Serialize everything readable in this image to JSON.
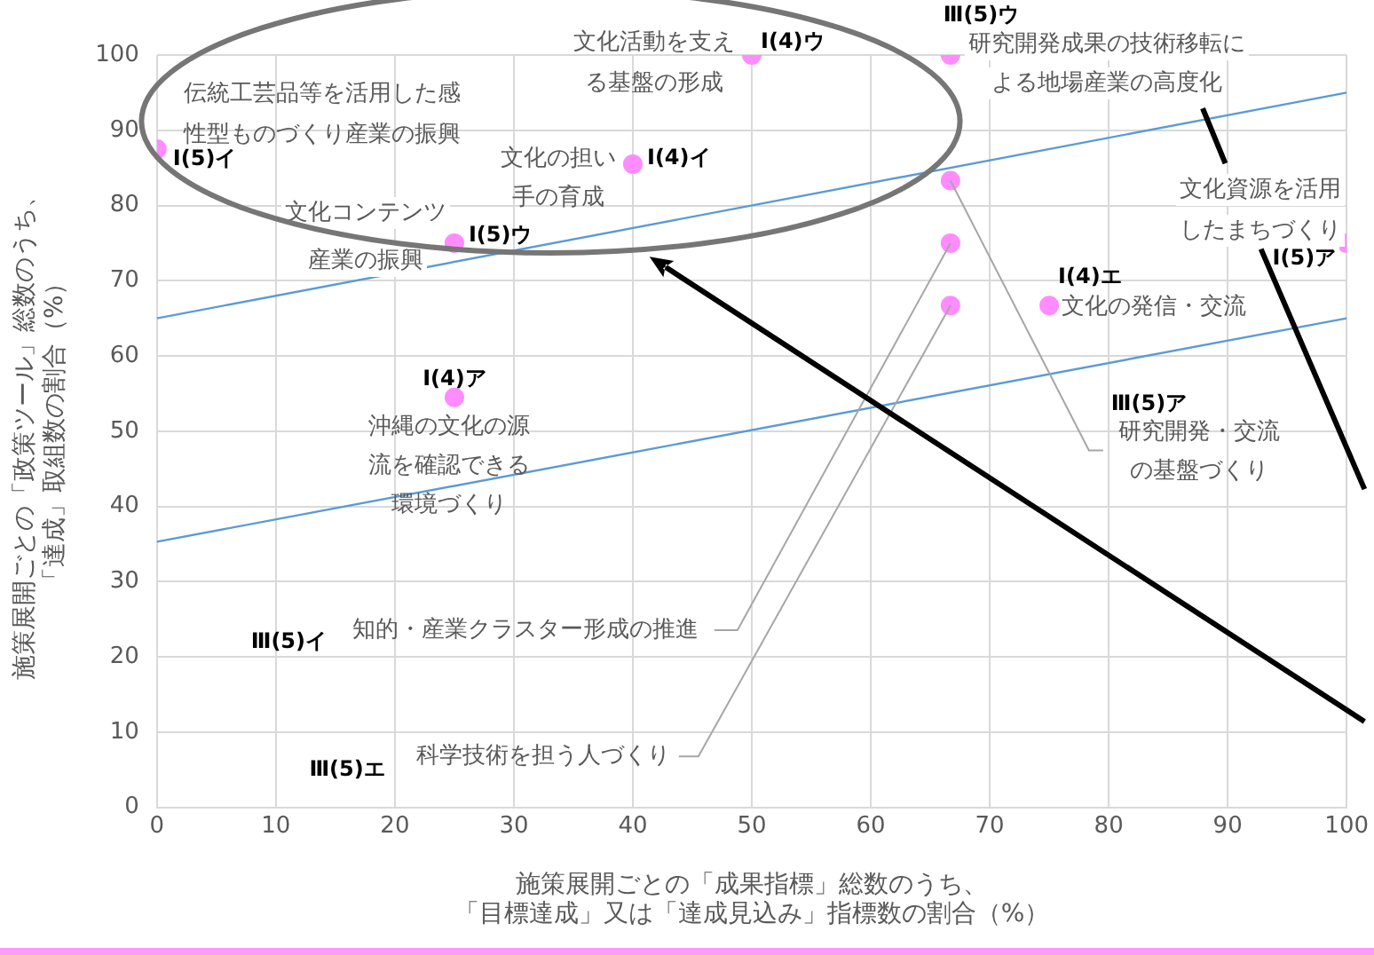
{
  "chart_data": {
    "type": "scatter",
    "xlabel": "施策展開ごとの「成果指標」総数のうち、「目標達成」又は「達成見込み」指標数の割合（%）",
    "ylabel": "施策展開ごとの「政策ツール」総数のうち、「達成」取組数の割合（%）",
    "series": [
      {
        "color": "#ff8cff",
        "marker": "circle",
        "x": [
          0,
          25,
          25,
          40,
          50,
          66.7,
          66.7,
          66.7,
          66.7,
          75,
          100
        ],
        "values": [
          87.5,
          75,
          54.5,
          85.5,
          100,
          100,
          83.3,
          75,
          66.7,
          66.7,
          75
        ]
      },
      {
        "type": "line",
        "color": "#5b9bd5",
        "x": [
          0,
          100
        ],
        "values": [
          65,
          95
        ]
      },
      {
        "type": "line",
        "color": "#5b9bd5",
        "x": [
          0,
          100
        ],
        "values": [
          35.3,
          65
        ]
      }
    ],
    "xlim": [
      0,
      100
    ],
    "xticks": [
      0,
      10,
      20,
      30,
      40,
      50,
      60,
      70,
      80,
      90,
      100
    ],
    "ylim": [
      0,
      100
    ],
    "yticks": [
      0,
      10,
      20,
      30,
      40,
      50,
      60,
      70,
      80,
      90,
      100
    ],
    "grid": true,
    "annotations": [
      {
        "text": "Ⅰ(5)イ",
        "x": 0,
        "y": 87.5
      },
      {
        "text": "伝統工芸品等を活用した感性型ものづくり産業の振興",
        "x": 0,
        "y": 87.5
      },
      {
        "text": "Ⅰ(5)ウ",
        "x": 25,
        "y": 75
      },
      {
        "text": "文化コンテンツ産業の振興",
        "x": 25,
        "y": 75
      },
      {
        "text": "Ⅰ(4)ア",
        "x": 25,
        "y": 54.5
      },
      {
        "text": "沖縄の文化の源流を確認できる環境づくり",
        "x": 25,
        "y": 54.5
      },
      {
        "text": "Ⅰ(4)イ",
        "x": 40,
        "y": 85.5
      },
      {
        "text": "文化の担い手の育成",
        "x": 40,
        "y": 85.5
      },
      {
        "text": "Ⅰ(4)ウ",
        "x": 50,
        "y": 100
      },
      {
        "text": "文化活動を支える基盤の形成",
        "x": 50,
        "y": 100
      },
      {
        "text": "Ⅲ(5)ウ",
        "x": 66.7,
        "y": 100
      },
      {
        "text": "研究開発成果の技術移転による地場産業の高度化",
        "x": 66.7,
        "y": 100
      },
      "Ⅲ(5)ア",
      {
        "text": "研究開発・交流の基盤づくり",
        "x": 66.7,
        "y": 83.3
      },
      "Ⅲ(5)イ",
      {
        "text": "知的・産業クラスター形成の推進",
        "x": 66.7,
        "y": 75
      },
      "Ⅲ(5)エ",
      {
        "text": "科学技術を担う人づくり",
        "x": 66.7,
        "y": 66.7
      },
      {
        "text": "Ⅰ(4)エ",
        "x": 75,
        "y": 66.7
      },
      {
        "text": "文化の発信・交流",
        "x": 75,
        "y": 66.7
      },
      {
        "text": "Ⅰ(5)ア",
        "x": 100,
        "y": 75
      },
      {
        "text": "文化資源を活用したまちづくり",
        "x": 100,
        "y": 75
      }
    ]
  }
}
